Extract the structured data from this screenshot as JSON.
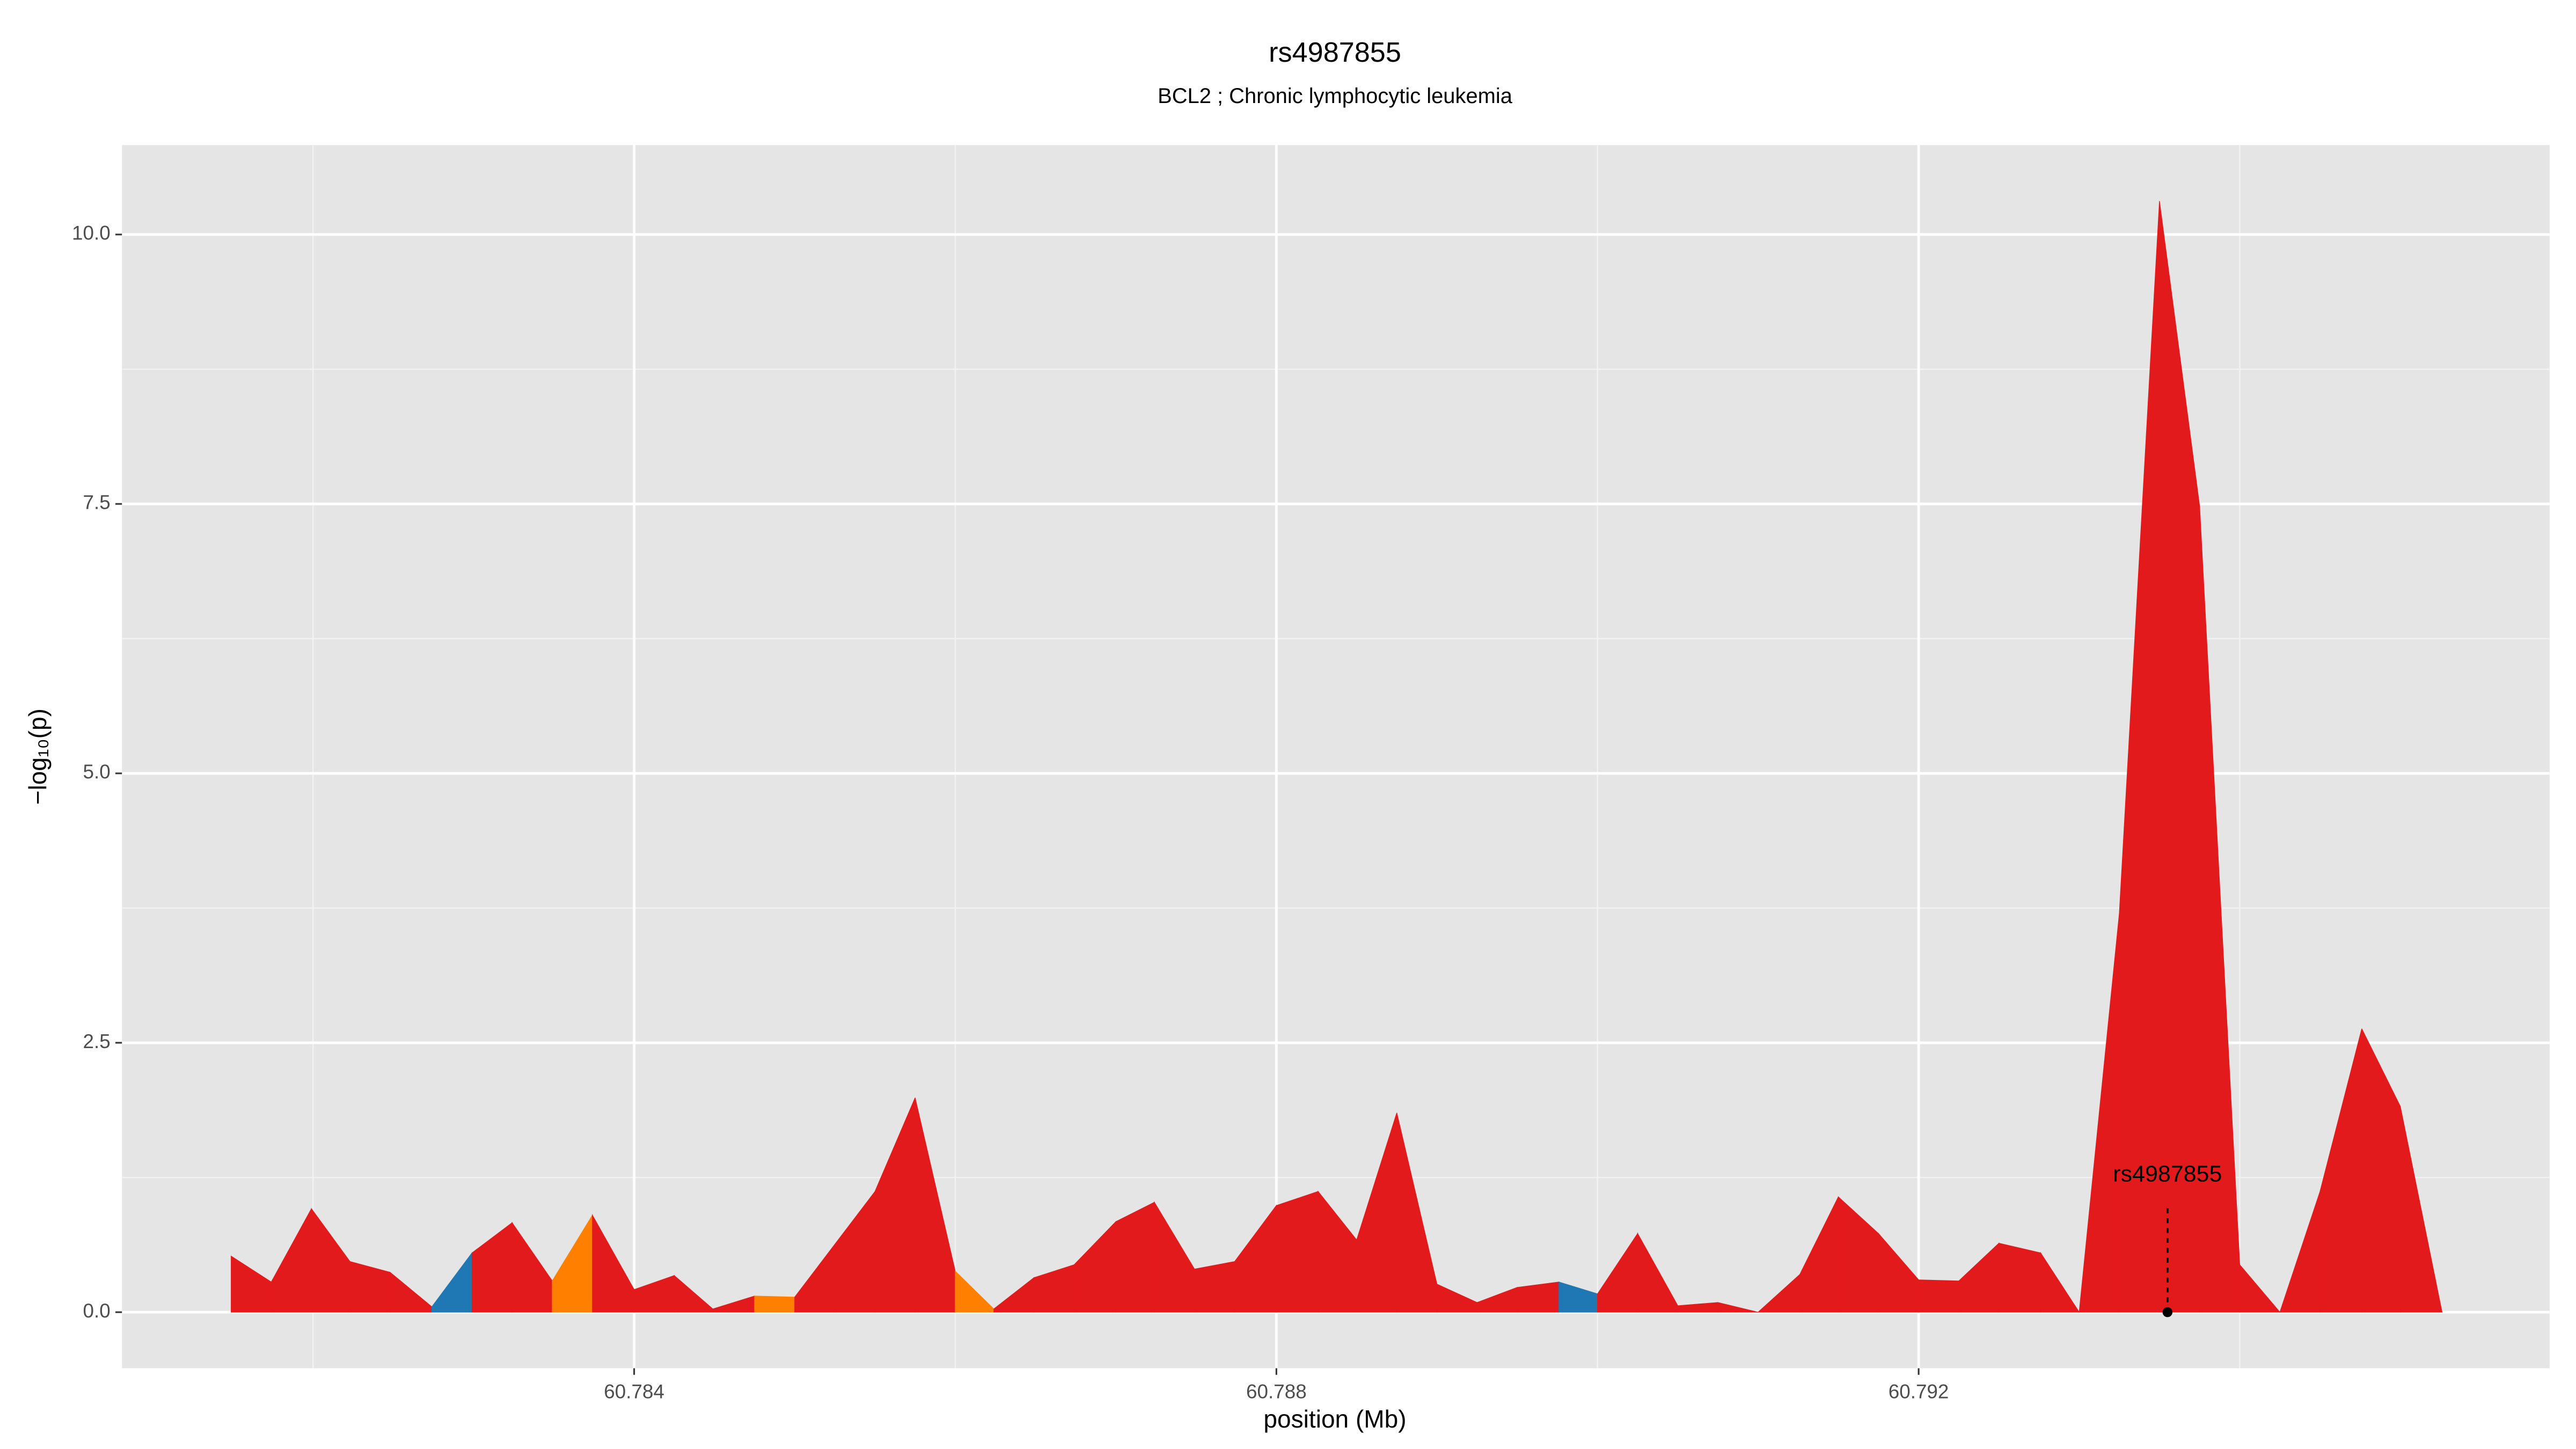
{
  "chart_data": {
    "type": "area",
    "title": "rs4987855",
    "subtitle": "BCL2 ; Chronic lymphocytic leukemia",
    "xlabel": "position (Mb)",
    "ylabel": "−log₁₀(p)",
    "x": [
      60.78149,
      60.78174,
      60.78199,
      60.78223,
      60.78248,
      60.78274,
      60.78299,
      60.78324,
      60.78349,
      60.78374,
      60.784,
      60.78425,
      60.78449,
      60.78475,
      60.785,
      60.78525,
      60.7855,
      60.78575,
      60.786,
      60.78624,
      60.78649,
      60.78674,
      60.787,
      60.78724,
      60.78749,
      60.78774,
      60.788,
      60.78826,
      60.7885,
      60.78875,
      60.789,
      60.78925,
      60.7895,
      60.78976,
      60.79,
      60.79025,
      60.7905,
      60.79075,
      60.791,
      60.79126,
      60.7915,
      60.79175,
      60.792,
      60.79225,
      60.7925,
      60.79276,
      60.793,
      60.79325,
      60.7935,
      60.79375,
      60.794,
      60.79425,
      60.7945,
      60.79476,
      60.795,
      60.79526
    ],
    "values": [
      0.52,
      0.28,
      0.96,
      0.47,
      0.37,
      0.05,
      0.55,
      0.83,
      0.29,
      0.9,
      0.21,
      0.34,
      0.03,
      0.15,
      0.14,
      0.63,
      1.12,
      1.99,
      0.38,
      0.03,
      0.32,
      0.44,
      0.84,
      1.02,
      0.4,
      0.47,
      0.99,
      1.12,
      0.67,
      1.85,
      0.26,
      0.09,
      0.23,
      0.28,
      0.17,
      0.73,
      0.06,
      0.09,
      0.0,
      0.35,
      1.07,
      0.73,
      0.3,
      0.29,
      0.64,
      0.55,
      0.0,
      3.7,
      10.31,
      7.48,
      0.44,
      0.0,
      1.12,
      2.63,
      1.91,
      0.0
    ],
    "colors": [
      "#e31a1c",
      "#e31a1c",
      "#e31a1c",
      "#e31a1c",
      "#e31a1c",
      "#e31a1c",
      "#1f78b4",
      "#e31a1c",
      "#e31a1c",
      "#ff7f00",
      "#e31a1c",
      "#e31a1c",
      "#e31a1c",
      "#e31a1c",
      "#ff7f00",
      "#e31a1c",
      "#e31a1c",
      "#e31a1c",
      "#e31a1c",
      "#ff7f00",
      "#e31a1c",
      "#e31a1c",
      "#e31a1c",
      "#e31a1c",
      "#e31a1c",
      "#e31a1c",
      "#e31a1c",
      "#e31a1c",
      "#e31a1c",
      "#e31a1c",
      "#e31a1c",
      "#e31a1c",
      "#e31a1c",
      "#e31a1c",
      "#1f78b4",
      "#e31a1c",
      "#e31a1c",
      "#e31a1c",
      "#e31a1c",
      "#e31a1c",
      "#e31a1c",
      "#e31a1c",
      "#e31a1c",
      "#e31a1c",
      "#e31a1c",
      "#e31a1c",
      "#e31a1c",
      "#e31a1c",
      "#e31a1c",
      "#e31a1c",
      "#e31a1c",
      "#e31a1c",
      "#e31a1c",
      "#e31a1c",
      "#e31a1c",
      "#e31a1c"
    ],
    "annotation": {
      "text": "rs4987855",
      "x": 60.79355,
      "y": 0
    },
    "xlim": [
      60.78081,
      60.79593
    ],
    "ylim": [
      -0.52,
      10.83
    ],
    "xticks": [
      60.784,
      60.788,
      60.792
    ],
    "yticks": [
      {
        "value": 0,
        "label": "0.0"
      },
      {
        "value": 2.5,
        "label": "2.5"
      },
      {
        "value": 5,
        "label": "5.0"
      },
      {
        "value": 7.5,
        "label": "7.5"
      },
      {
        "value": 10,
        "label": "10.0"
      }
    ],
    "grid": true
  }
}
